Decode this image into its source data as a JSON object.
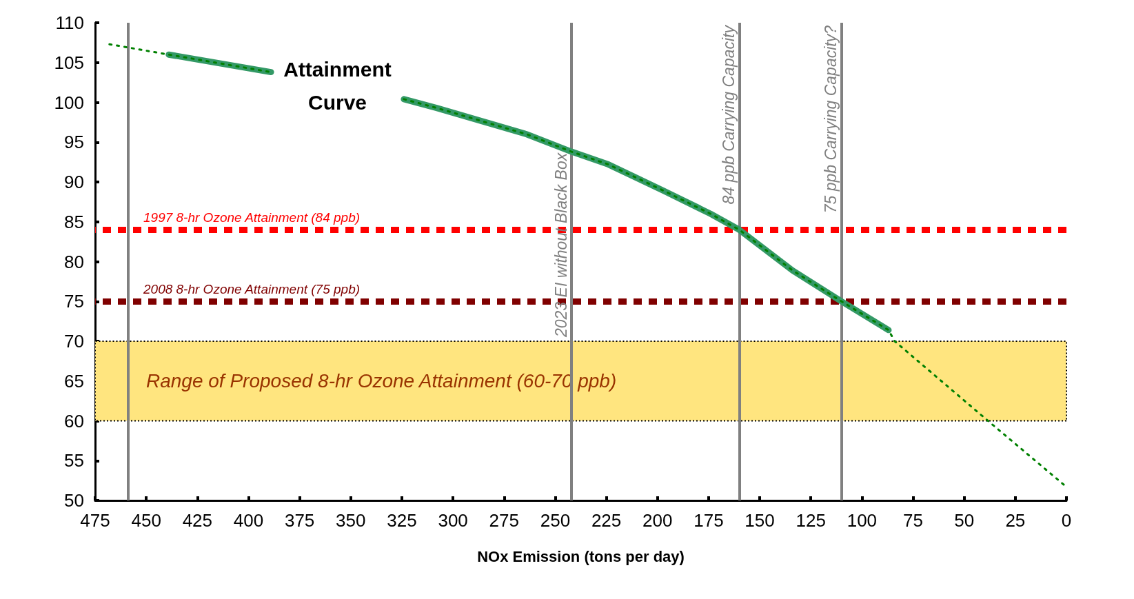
{
  "chart_data": {
    "type": "line",
    "xlabel": "NOx Emission (tons per day)",
    "xlim": [
      475,
      0
    ],
    "xticks": [
      475,
      450,
      425,
      400,
      375,
      350,
      325,
      300,
      275,
      250,
      225,
      200,
      175,
      150,
      125,
      100,
      75,
      50,
      25,
      0
    ],
    "ylim": [
      50,
      110
    ],
    "yticks": [
      50,
      55,
      60,
      65,
      70,
      75,
      80,
      85,
      90,
      95,
      100,
      105,
      110
    ],
    "grid": false,
    "marker": "none",
    "series": [
      {
        "color": "#339966",
        "line_style": "solid",
        "x": [
          439,
          389,
          null,
          324,
          308,
          264,
          242,
          224,
          197,
          174,
          160,
          134,
          110,
          87
        ],
        "values": [
          106,
          103.8,
          null,
          100.4,
          99.3,
          96,
          93.8,
          92.2,
          88.9,
          86,
          84,
          78.9,
          75,
          71.4
        ]
      },
      {
        "color": "#008000",
        "line_style": "dotted",
        "x": [
          468,
          439,
          389,
          null,
          324,
          308,
          264,
          242,
          224,
          197,
          174,
          160,
          134,
          110,
          87,
          84,
          37,
          0
        ],
        "values": [
          107.3,
          106,
          103.8,
          null,
          100.4,
          99.3,
          96,
          93.8,
          92.2,
          88.9,
          86,
          84,
          78.9,
          75,
          71.4,
          70,
          59.7,
          51.7
        ]
      }
    ],
    "annotations": [
      "Attainment Curve"
    ],
    "ref_lines": [
      {
        "axis": "y",
        "value": 84,
        "label": "1997 8-hr Ozone Attainment (84 ppb)",
        "color": "#ff0000",
        "line_style": "dashed"
      },
      {
        "axis": "y",
        "value": 75,
        "label": "2008 8-hr Ozone Attainment (75 ppb)",
        "color": "#800000",
        "line_style": "dashed"
      },
      {
        "axis": "x",
        "value": 459,
        "label": null,
        "color": "#808080",
        "line_style": "solid"
      },
      {
        "axis": "x",
        "value": 242,
        "label": "2023 EI without Black Box",
        "color": "#808080",
        "line_style": "solid"
      },
      {
        "axis": "x",
        "value": 160,
        "label": "84 ppb Carrying Capacity",
        "color": "#808080",
        "line_style": "solid"
      },
      {
        "axis": "x",
        "value": 110,
        "label": "75 ppb Carrying Capacity?",
        "color": "#808080",
        "line_style": "solid"
      }
    ],
    "bands": [
      {
        "axis": "y",
        "from": 60,
        "to": 70,
        "label": "Range of Proposed 8-hr Ozone Attainment (60-70 ppb)",
        "color": "#ffe57f"
      }
    ]
  }
}
